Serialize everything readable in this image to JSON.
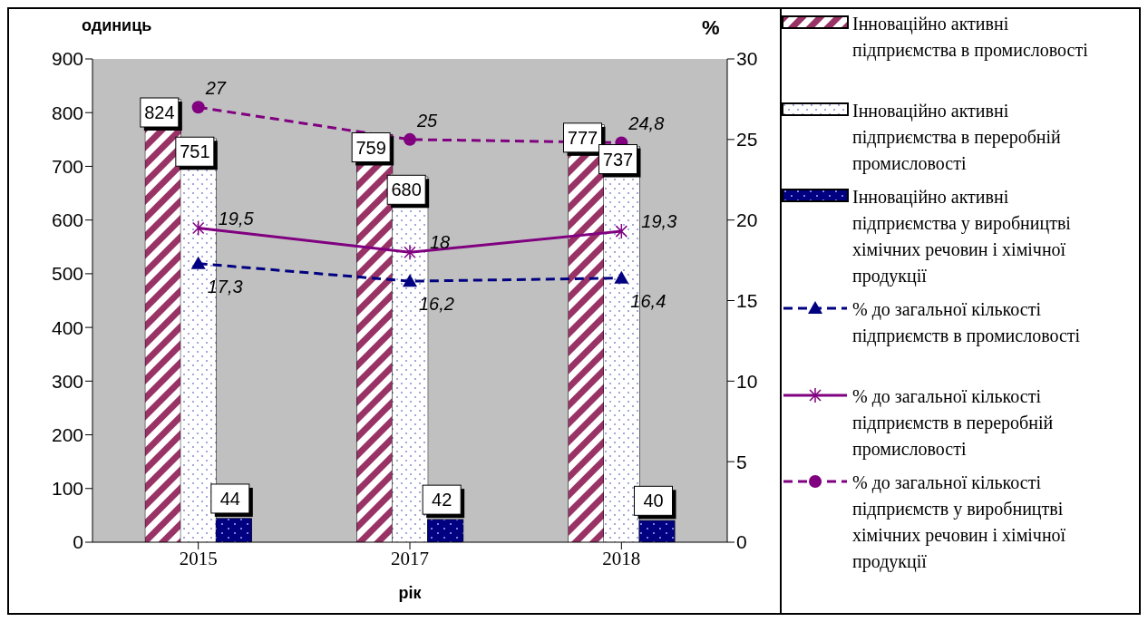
{
  "chart_data": {
    "type": "bar",
    "xlabel": "рік",
    "ylabel": "одиниць",
    "y2label": "%",
    "categories": [
      "2015",
      "2017",
      "2018"
    ],
    "series": [
      {
        "name": "Інноваційно активні підприємства в промисловості",
        "color": "#993366",
        "values": [
          824,
          759,
          777
        ]
      },
      {
        "name": "Інноваційно активні підприємства в переробній промисловості",
        "color": "#ffffff",
        "values": [
          751,
          680,
          737
        ]
      },
      {
        "name": "Інноваційно активні підприємства у виробництві хімічних речовин і хімічної продукції",
        "color": "#000080",
        "values": [
          44,
          42,
          40
        ]
      },
      {
        "name": "% до загальної кількості підприємств в промисловості",
        "type": "line",
        "axis": "y2",
        "color": "#000080",
        "marker": "triangle",
        "line_style": "dashed",
        "values": [
          17.3,
          16.2,
          16.4
        ],
        "value_labels": [
          "17,3",
          "16,2",
          "16,4"
        ]
      },
      {
        "name": "% до загальної кількості підприємств в переробній промисловості",
        "type": "line",
        "axis": "y2",
        "color": "#800080",
        "marker": "cross",
        "line_style": "solid",
        "values": [
          19.5,
          18,
          19.3
        ],
        "value_labels": [
          "19,5",
          "18",
          "19,3"
        ]
      },
      {
        "name": "% до загальної кількості підприємств у виробництві хімічних речовин і хімічної продукції",
        "type": "line",
        "axis": "y2",
        "color": "#800080",
        "marker": "circle",
        "line_style": "dashed",
        "values": [
          27,
          25,
          24.8
        ],
        "value_labels": [
          "27",
          "25",
          "24,8"
        ]
      }
    ],
    "ylim": [
      0,
      900
    ],
    "yticks": [
      0,
      100,
      200,
      300,
      400,
      500,
      600,
      700,
      800,
      900
    ],
    "y2lim": [
      0,
      30
    ],
    "y2ticks": [
      0,
      5,
      10,
      15,
      20,
      25,
      30
    ],
    "data_labels": true,
    "legend": "right"
  }
}
